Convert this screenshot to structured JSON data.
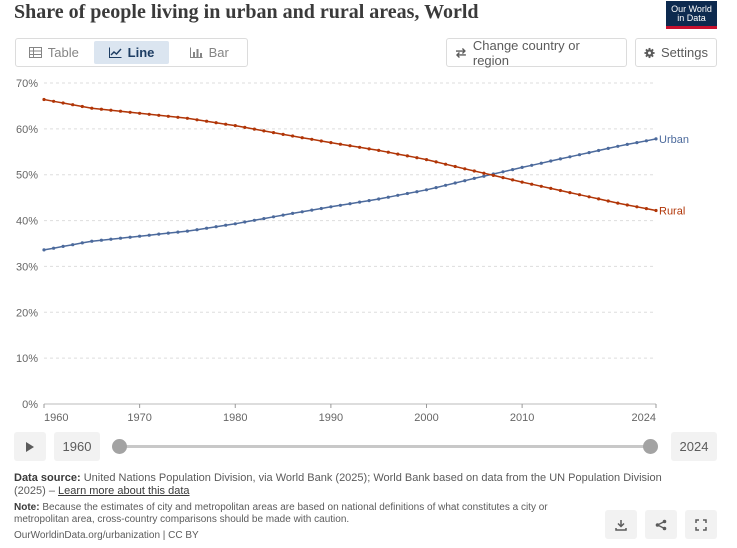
{
  "header": {
    "title": "Share of people living in urban and rural areas, World",
    "logo_line1": "Our World",
    "logo_line2": "in Data"
  },
  "tabs": [
    {
      "label": "Table",
      "icon": "table-icon",
      "active": false
    },
    {
      "label": "Line",
      "icon": "line-chart-icon",
      "active": true
    },
    {
      "label": "Bar",
      "icon": "bar-chart-icon",
      "active": false
    }
  ],
  "controls": {
    "change_country_label": "Change country or region",
    "settings_label": "Settings"
  },
  "timeline": {
    "start_year": "1960",
    "end_year": "2024"
  },
  "footer": {
    "data_source_label": "Data source:",
    "data_source_text": "United Nations Population Division, via World Bank (2025); World Bank based on data from the UN Population Division (2025) –",
    "learn_more": "Learn more about this data",
    "note_label": "Note:",
    "note_text": "Because the estimates of city and metropolitan areas are based on national definitions of what constitutes a city or metropolitan area, cross-country comparisons should be made with caution.",
    "credit": "OurWorldinData.org/urbanization | CC BY"
  },
  "colors": {
    "urban": "#4c6a9c",
    "rural": "#b13507",
    "grid": "#dddddd",
    "axis_text": "#666666"
  },
  "chart_data": {
    "type": "line",
    "title": "Share of people living in urban and rural areas, World",
    "xlabel": "",
    "ylabel": "",
    "xlim": [
      1960,
      2024
    ],
    "ylim": [
      0,
      70
    ],
    "x_ticks": [
      1960,
      1970,
      1980,
      1990,
      2000,
      2010,
      2024
    ],
    "y_ticks": [
      "0%",
      "10%",
      "20%",
      "30%",
      "40%",
      "50%",
      "60%",
      "70%"
    ],
    "y_tick_values": [
      0,
      10,
      20,
      30,
      40,
      50,
      60,
      70
    ],
    "legend": "inline-right",
    "series": [
      {
        "name": "Urban",
        "anchors": [
          [
            1960,
            33.6
          ],
          [
            1965,
            35.5
          ],
          [
            1970,
            36.6
          ],
          [
            1975,
            37.7
          ],
          [
            1980,
            39.3
          ],
          [
            1985,
            41.2
          ],
          [
            1990,
            43.0
          ],
          [
            1995,
            44.7
          ],
          [
            2000,
            46.7
          ],
          [
            2005,
            49.2
          ],
          [
            2010,
            51.6
          ],
          [
            2015,
            53.9
          ],
          [
            2020,
            56.2
          ],
          [
            2024,
            57.8
          ]
        ]
      },
      {
        "name": "Rural",
        "anchors": [
          [
            1960,
            66.4
          ],
          [
            1965,
            64.5
          ],
          [
            1970,
            63.4
          ],
          [
            1975,
            62.3
          ],
          [
            1980,
            60.7
          ],
          [
            1985,
            58.8
          ],
          [
            1990,
            57.0
          ],
          [
            1995,
            55.3
          ],
          [
            2000,
            53.3
          ],
          [
            2005,
            50.8
          ],
          [
            2010,
            48.4
          ],
          [
            2015,
            46.1
          ],
          [
            2020,
            43.8
          ],
          [
            2024,
            42.2
          ]
        ]
      }
    ]
  }
}
